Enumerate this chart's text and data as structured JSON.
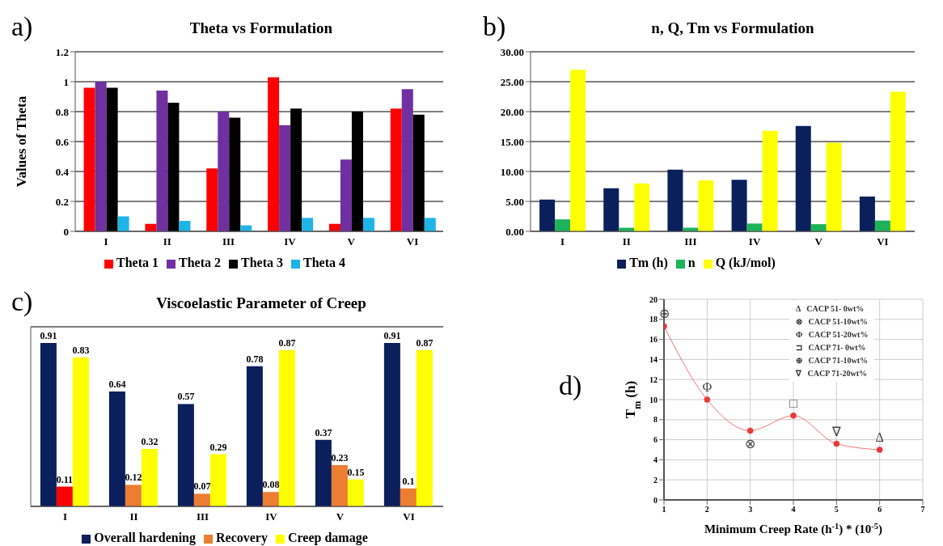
{
  "chart_data": [
    {
      "type": "bar",
      "title": "Theta vs Formulation",
      "ylabel": "Values of Theta",
      "annotations": [
        "a)"
      ],
      "categories": [
        "I",
        "II",
        "III",
        "IV",
        "V",
        "VI"
      ],
      "series": [
        {
          "name": "Theta 1",
          "color": "#ff0000",
          "values": [
            0.96,
            0.05,
            0.42,
            1.03,
            0.05,
            0.82
          ]
        },
        {
          "name": "Theta 2",
          "color": "#7030a0",
          "values": [
            1.0,
            0.94,
            0.8,
            0.71,
            0.48,
            0.95
          ]
        },
        {
          "name": "Theta 3",
          "color": "#000000",
          "values": [
            0.96,
            0.86,
            0.76,
            0.82,
            0.8,
            0.78
          ]
        },
        {
          "name": "Theta 4",
          "color": "#1fb4e8",
          "values": [
            0.1,
            0.07,
            0.04,
            0.09,
            0.09,
            0.09
          ]
        }
      ],
      "ylim": [
        0,
        1.2
      ],
      "yticks": [
        0,
        0.2,
        0.4,
        0.6,
        0.8,
        1,
        1.2
      ],
      "grid": "y",
      "legend": "bottom"
    },
    {
      "type": "bar",
      "title": "n, Q, Tm vs Formulation",
      "annotations": [
        "b)"
      ],
      "categories": [
        "I",
        "II",
        "III",
        "IV",
        "V",
        "VI"
      ],
      "series": [
        {
          "name": "Tm (h)",
          "color": "#0a1f5c",
          "values": [
            5.3,
            7.2,
            10.3,
            8.6,
            17.6,
            5.8
          ]
        },
        {
          "name": "n",
          "color": "#1db35a",
          "values": [
            2.0,
            0.6,
            0.6,
            1.3,
            1.2,
            1.8
          ]
        },
        {
          "name": "Q (kJ/mol)",
          "color": "#ffff00",
          "values": [
            27.0,
            8.0,
            8.5,
            16.8,
            14.8,
            23.3
          ]
        }
      ],
      "ylim": [
        0,
        30
      ],
      "yticks": [
        {
          "value": 0,
          "label": "0.00"
        },
        {
          "value": 5,
          "label": "5.00"
        },
        {
          "value": 10,
          "label": "10.00"
        },
        {
          "value": 15,
          "label": "15.00"
        },
        {
          "value": 20,
          "label": "20.00"
        },
        {
          "value": 25,
          "label": "25.00"
        },
        {
          "value": 30,
          "label": "30.00"
        }
      ],
      "grid": "y",
      "legend": "bottom"
    },
    {
      "type": "bar",
      "title": "Viscoelastic Parameter of Creep",
      "annotations": [
        "c)"
      ],
      "categories": [
        "I",
        "II",
        "III",
        "IV",
        "V",
        "VI"
      ],
      "series": [
        {
          "name": "Overall hardening",
          "color": "#0a1f5c",
          "values": [
            0.91,
            0.64,
            0.57,
            0.78,
            0.37,
            0.91
          ]
        },
        {
          "name": "Recovery",
          "color": "#ed7d31",
          "colors": [
            "#ff0000",
            "#ed7d31",
            "#ed7d31",
            "#ed7d31",
            "#ed7d31",
            "#ed7d31"
          ],
          "values": [
            0.11,
            0.12,
            0.07,
            0.08,
            0.23,
            0.1
          ]
        },
        {
          "name": "Creep damage",
          "color": "#ffff00",
          "values": [
            0.83,
            0.32,
            0.29,
            0.87,
            0.15,
            0.87
          ]
        }
      ],
      "ylim": [
        0,
        1
      ],
      "tick_labels": "x",
      "grid": "y",
      "legend": "bottom",
      "data_labels": true
    },
    {
      "type": "line",
      "xlabel": "Minimum Creep Rate (h$^{-1}$) * (10$^{-5}$)",
      "ylabel": "T$_{m}$ (h)",
      "x": [
        1,
        2,
        3,
        4,
        5,
        6
      ],
      "series": [
        {
          "color": "#e83a3a",
          "values": [
            17.3,
            10.0,
            6.9,
            8.4,
            5.6,
            5.0
          ]
        }
      ],
      "annotations": [
        "d)",
        "Δ   CACP 51- 0wt%",
        "⊗   CACP 51-10wt%",
        "Φ   CACP 51-20wt%",
        "⊐   CACP 71- 0wt%",
        "⊕   CACP 71-10wt%",
        "∇   CACP 71-20wt%",
        {
          "text": "⊕",
          "x": 1,
          "y": 17.3
        },
        {
          "text": "Φ",
          "x": 2,
          "y": 10.0
        },
        {
          "text": "⊗",
          "x": 3,
          "y": 6.9
        },
        {
          "text": "□",
          "x": 4,
          "y": 8.4
        },
        {
          "text": "∇",
          "x": 5,
          "y": 5.6
        },
        {
          "text": "Δ",
          "x": 6,
          "y": 5.0
        }
      ],
      "xlim": [
        1,
        7
      ],
      "xticks": [
        1,
        2,
        3,
        4,
        5,
        6,
        7
      ],
      "ylim": [
        0,
        20
      ],
      "yticks": [
        0,
        2,
        4,
        6,
        8,
        10,
        12,
        14,
        16,
        18,
        20
      ],
      "grid": true,
      "marker": "circle",
      "line_style": "solid"
    }
  ]
}
